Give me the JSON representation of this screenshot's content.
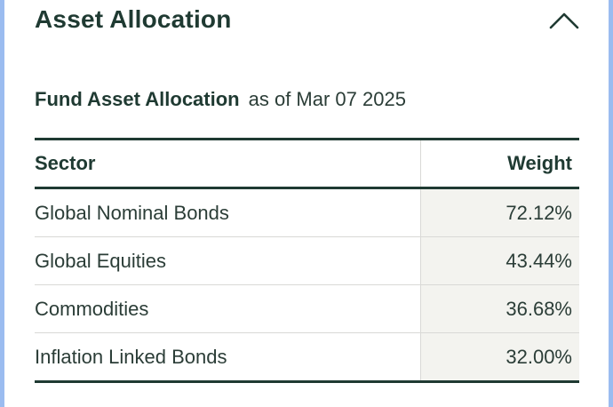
{
  "section": {
    "title": "Asset Allocation",
    "collapse_icon": "chevron-up-icon"
  },
  "allocation": {
    "label": "Fund Asset Allocation",
    "as_of": "as of Mar 07 2025",
    "columns": [
      "Sector",
      "Weight"
    ],
    "rows": [
      {
        "sector": "Global Nominal Bonds",
        "weight": "72.12%"
      },
      {
        "sector": "Global Equities",
        "weight": "43.44%"
      },
      {
        "sector": "Commodities",
        "weight": "36.68%"
      },
      {
        "sector": "Inflation Linked Bonds",
        "weight": "32.00%"
      }
    ]
  },
  "colors": {
    "heading": "#1f3a32",
    "weight_cell_bg": "#f3f3ef",
    "row_divider": "#d9d9d6",
    "page_edge": "#9bbcf0"
  }
}
